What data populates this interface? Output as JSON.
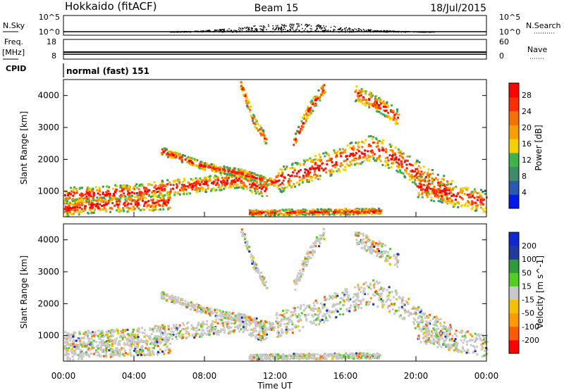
{
  "header": {
    "station": "Hokkaido (fitACF)",
    "beam": "Beam 15",
    "date": "18/Jul/2015"
  },
  "noise_panel": {
    "left_label": "N.Sky",
    "right_label": "N.Search",
    "ticks_left": [
      "10^5",
      "10^0"
    ],
    "ticks_right": [
      "10^5",
      "10^0"
    ]
  },
  "freq_panel": {
    "left_label": "Freq.",
    "left_unit": "[MHz]",
    "right_label": "Nave",
    "ticks_left": [
      "18",
      "8"
    ],
    "ticks_right": [
      "60",
      "0"
    ]
  },
  "cpid": {
    "label": "CPID",
    "value": "normal (fast) 151"
  },
  "x_axis": {
    "label": "Time UT",
    "ticks": [
      "00:00",
      "04:00",
      "08:00",
      "12:00",
      "16:00",
      "20:00",
      "00:00"
    ],
    "range_hours": [
      0,
      24
    ]
  },
  "colors": {
    "power": [
      "#0018f0",
      "#2a5ab0",
      "#3f8a6a",
      "#3fb34a",
      "#f5d000",
      "#f5a000",
      "#f57000",
      "#ff2e00",
      "#ff0000"
    ],
    "velocity": [
      "#ff0000",
      "#ff5a00",
      "#ff9900",
      "#f5c000",
      "#c8c8c8",
      "#55cc22",
      "#2e9a3a",
      "#233a9a",
      "#1028d0"
    ],
    "velocity_gray": "#c8c8c8"
  },
  "chart_data": [
    {
      "type": "heatmap",
      "name": "power-panel",
      "ylabel": "Slant Range [km]",
      "yticks": [
        1000,
        2000,
        3000,
        4000
      ],
      "ylim": [
        200,
        4500
      ],
      "colorbar": {
        "label": "Power [dB]",
        "ticks": [
          "4",
          "8",
          "12",
          "16",
          "20",
          "24",
          "28"
        ]
      },
      "features": [
        {
          "type": "band",
          "x": [
            0,
            2,
            4,
            6,
            8,
            10,
            11.5
          ],
          "y": [
            900,
            950,
            1000,
            1150,
            1250,
            1400,
            1050
          ],
          "width": 250
        },
        {
          "type": "band",
          "x": [
            5.5,
            6.5,
            8,
            10,
            11.5,
            12
          ],
          "y": [
            2300,
            2100,
            1800,
            1600,
            1350,
            1300
          ],
          "width": 120
        },
        {
          "type": "band",
          "x": [
            12,
            14,
            16,
            17.5,
            19,
            20.5,
            22
          ],
          "y": [
            1350,
            1700,
            2100,
            2400,
            2000,
            1400,
            1000
          ],
          "width": 400
        },
        {
          "type": "band",
          "x": [
            0,
            2,
            4,
            6
          ],
          "y": [
            500,
            600,
            650,
            700
          ],
          "width": 250
        },
        {
          "type": "band",
          "x": [
            13,
            13.8,
            14.8
          ],
          "y": [
            2500,
            3500,
            4300
          ],
          "width": 200
        },
        {
          "type": "band",
          "x": [
            10,
            10.8,
            11.5
          ],
          "y": [
            4400,
            3200,
            2600
          ],
          "width": 150
        },
        {
          "type": "band",
          "x": [
            16.5,
            18,
            19
          ],
          "y": [
            4100,
            3700,
            3300
          ],
          "width": 250
        },
        {
          "type": "band",
          "x": [
            20,
            22,
            24
          ],
          "y": [
            1200,
            900,
            700
          ],
          "width": 350
        },
        {
          "type": "band",
          "x": [
            10.5,
            14,
            18
          ],
          "y": [
            350,
            380,
            400
          ],
          "width": 90
        }
      ]
    },
    {
      "type": "heatmap",
      "name": "velocity-panel",
      "ylabel": "Slant Range [km]",
      "yticks": [
        1000,
        2000,
        3000,
        4000
      ],
      "ylim": [
        200,
        4500
      ],
      "colorbar": {
        "label": "Velocity [m s^-1]",
        "ticks": [
          "200",
          "100",
          "50",
          "15",
          "-15",
          "-50",
          "-100",
          "-200"
        ]
      },
      "features": [
        {
          "type": "band",
          "x": [
            0,
            2,
            4,
            6,
            8,
            10,
            11.5
          ],
          "y": [
            900,
            950,
            1000,
            1150,
            1250,
            1400,
            1050
          ],
          "width": 250
        },
        {
          "type": "band",
          "x": [
            5.5,
            6.5,
            8,
            10,
            11.5,
            12
          ],
          "y": [
            2300,
            2100,
            1800,
            1600,
            1350,
            1300
          ],
          "width": 120
        },
        {
          "type": "band",
          "x": [
            12,
            14,
            16,
            17.5,
            19,
            20.5,
            22
          ],
          "y": [
            1350,
            1700,
            2100,
            2400,
            2000,
            1400,
            1000
          ],
          "width": 400
        },
        {
          "type": "band",
          "x": [
            0,
            2,
            4,
            6
          ],
          "y": [
            500,
            600,
            650,
            700
          ],
          "width": 250
        },
        {
          "type": "band",
          "x": [
            13,
            13.8,
            14.8
          ],
          "y": [
            2500,
            3500,
            4300
          ],
          "width": 200
        },
        {
          "type": "band",
          "x": [
            10,
            10.8,
            11.5
          ],
          "y": [
            4400,
            3200,
            2600
          ],
          "width": 150
        },
        {
          "type": "band",
          "x": [
            16.5,
            18,
            19
          ],
          "y": [
            4100,
            3700,
            3300
          ],
          "width": 250
        },
        {
          "type": "band",
          "x": [
            20,
            22,
            24
          ],
          "y": [
            1200,
            900,
            700
          ],
          "width": 350
        },
        {
          "type": "band",
          "x": [
            10.5,
            14,
            18
          ],
          "y": [
            350,
            380,
            400
          ],
          "width": 90
        }
      ]
    }
  ]
}
